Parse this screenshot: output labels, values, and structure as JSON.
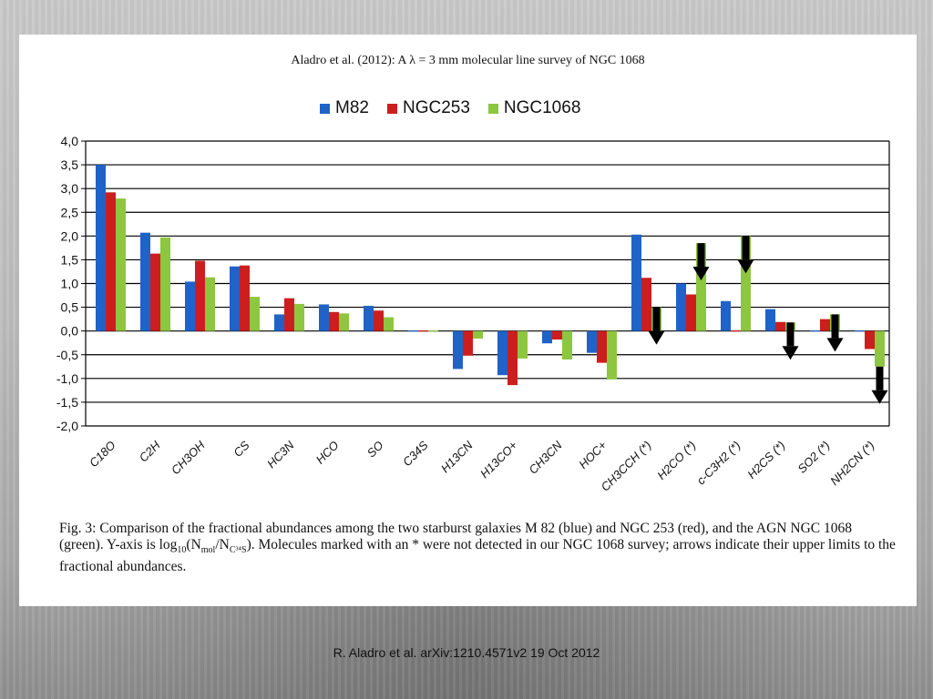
{
  "figure": {
    "title": "Aladro et al. (2012): A λ = 3 mm molecular line survey of NGC 1068",
    "caption": {
      "part1": "Fig. 3: Comparison of the fractional abundances among the two starburst galaxies M 82 (blue) and NGC 253 (red), and the AGN NGC 1068 (green). Y-axis is log",
      "log_base": "10",
      "paren_open": "(N",
      "mol_sub": "mol",
      "slash": "/N",
      "ref_sub": "C³⁴S",
      "part2": "). Molecules marked with an * were not detected in our NGC 1068 survey; arrows indicate their upper limits to the fractional abundances."
    }
  },
  "footer": {
    "credit": "R. Aladro et al. arXiv:1210.4571v2 19 Oct 2012"
  },
  "colors": {
    "M82": "#1f63c8",
    "NGC253": "#cc1e1e",
    "NGC1068": "#8dc63f",
    "arrow": "#000000",
    "grid": "#000000"
  },
  "chart_data": {
    "type": "bar",
    "legend_position": "top",
    "grid": true,
    "ylim": [
      -2.0,
      4.0
    ],
    "yticks": [
      "4,0",
      "3,5",
      "3,0",
      "2,5",
      "2,0",
      "1,5",
      "1,0",
      "0,5",
      "0,0",
      "-0,5",
      "-1,0",
      "-1,5",
      "-2,0"
    ],
    "ytick_values": [
      4.0,
      3.5,
      3.0,
      2.5,
      2.0,
      1.5,
      1.0,
      0.5,
      0.0,
      -0.5,
      -1.0,
      -1.5,
      -2.0
    ],
    "categories": [
      "C18O",
      "C2H",
      "CH3OH",
      "CS",
      "HC3N",
      "HCO",
      "SO",
      "C34S",
      "H13CN",
      "H13CO+",
      "CH3CN",
      "HOC+",
      "CH3CCH (*)",
      "H2CO (*)",
      "c-C3H2 (*)",
      "H2CS (*)",
      "SO2 (*)",
      "NH2CN (*)"
    ],
    "series": [
      {
        "name": "M82",
        "values": [
          3.5,
          2.07,
          1.04,
          1.36,
          0.35,
          0.56,
          0.53,
          0.0,
          -0.8,
          -0.93,
          -0.26,
          -0.46,
          2.03,
          1.0,
          0.63,
          0.46,
          0.0,
          0.0
        ]
      },
      {
        "name": "NGC253",
        "values": [
          2.92,
          1.63,
          1.48,
          1.38,
          0.69,
          0.4,
          0.43,
          0.0,
          -0.52,
          -1.14,
          -0.18,
          -0.67,
          1.12,
          0.77,
          0.0,
          0.19,
          0.25,
          -0.38
        ]
      },
      {
        "name": "NGC1068",
        "values": [
          2.79,
          1.97,
          1.13,
          0.72,
          0.57,
          0.37,
          0.29,
          0.0,
          -0.16,
          -0.58,
          -0.6,
          -1.02,
          0.5,
          1.85,
          2.0,
          0.18,
          0.35,
          -0.75
        ]
      }
    ],
    "upper_limits": [
      12,
      13,
      14,
      15,
      16,
      17
    ]
  }
}
